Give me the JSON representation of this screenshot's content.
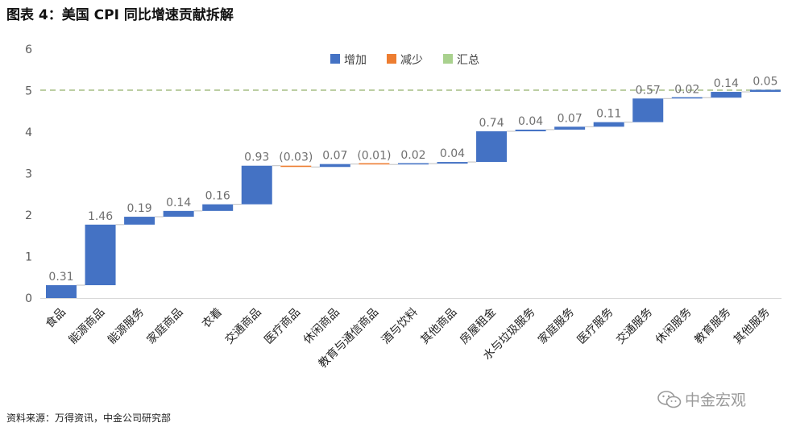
{
  "title": "图表 4：美国 CPI 同比增速贡献拆解",
  "source": "资料来源：万得资讯，中金公司研究部",
  "watermark": "中金宏观",
  "colors": {
    "increase": "#4472C4",
    "decrease": "#ED7D31",
    "total": "#A9D18E",
    "dashed_line": "#A9C08A",
    "label": "#707070"
  },
  "chart_data": {
    "type": "waterfall",
    "legend": {
      "position": "top",
      "entries": [
        "增加",
        "减少",
        "汇总"
      ]
    },
    "ylim": [
      0,
      6
    ],
    "yticks": [
      0,
      1,
      2,
      3,
      4,
      5,
      6
    ],
    "grid": false,
    "reference_line": 5.01,
    "categories": [
      "食品",
      "能源商品",
      "能源服务",
      "家庭商品",
      "衣着",
      "交通商品",
      "医疗商品",
      "休闲商品",
      "教育与通信商品",
      "酒与饮料",
      "其他商品",
      "房屋租金",
      "水与垃圾服务",
      "家庭服务",
      "医疗服务",
      "交通服务",
      "休闲服务",
      "教育服务",
      "其他服务"
    ],
    "values": [
      0.31,
      1.46,
      0.19,
      0.14,
      0.16,
      0.93,
      -0.03,
      0.07,
      -0.01,
      0.02,
      0.04,
      0.74,
      0.04,
      0.07,
      0.11,
      0.57,
      0.02,
      0.14,
      0.05
    ],
    "value_labels": [
      "0.31",
      "1.46",
      "0.19",
      "0.14",
      "0.16",
      "0.93",
      "(0.03)",
      "0.07",
      "(0.01)",
      "0.02",
      "0.04",
      "0.74",
      "0.04",
      "0.07",
      "0.11",
      "0.57",
      "0.02",
      "0.14",
      "0.05"
    ]
  }
}
